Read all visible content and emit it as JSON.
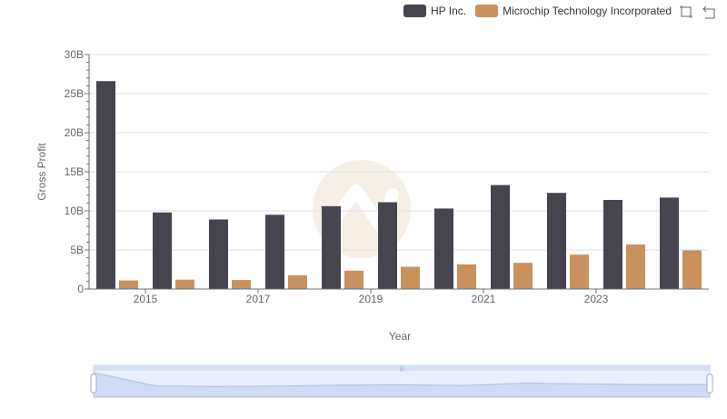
{
  "legend": {
    "items": [
      {
        "label": "HP Inc.",
        "color": "#46454f"
      },
      {
        "label": "Microchip Technology Incorporated",
        "color": "#c8915e"
      }
    ]
  },
  "toolbox": [
    {
      "name": "zoom-icon"
    },
    {
      "name": "restore-icon"
    }
  ],
  "chart_data": {
    "type": "bar",
    "title": "",
    "xlabel": "Year",
    "ylabel": "Gross Profit",
    "categories": [
      "2014",
      "2015",
      "2016",
      "2017",
      "2018",
      "2019",
      "2020",
      "2021",
      "2022",
      "2023",
      "2024"
    ],
    "x_tick_labels": [
      "2015",
      "2017",
      "2019",
      "2021",
      "2023"
    ],
    "y_tick_labels": [
      "0",
      "5B",
      "10B",
      "15B",
      "20B",
      "25B",
      "30B"
    ],
    "ylim": [
      0,
      30000000000
    ],
    "series": [
      {
        "name": "HP Inc.",
        "color": "#46454f",
        "values": [
          26600000000,
          9800000000,
          8900000000,
          9500000000,
          10600000000,
          11100000000,
          10300000000,
          13300000000,
          12300000000,
          11400000000,
          11700000000
        ]
      },
      {
        "name": "Microchip Technology Incorporated",
        "color": "#c8915e",
        "values": [
          1100000000,
          1200000000,
          1150000000,
          1750000000,
          2350000000,
          2850000000,
          3150000000,
          3350000000,
          4400000000,
          5700000000,
          4950000000
        ]
      }
    ]
  }
}
